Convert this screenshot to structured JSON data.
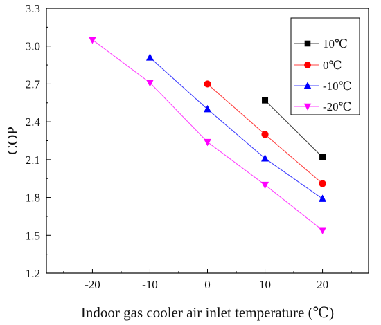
{
  "chart_data": {
    "type": "line",
    "xlabel": "Indoor gas cooler air inlet temperature (℃)",
    "ylabel": "COP",
    "xlim": [
      -28,
      28
    ],
    "ylim": [
      1.2,
      3.3
    ],
    "xticks": [
      "-20",
      "-10",
      "0",
      "10",
      "20"
    ],
    "yticks": [
      "1.2",
      "1.5",
      "1.8",
      "2.1",
      "2.4",
      "2.7",
      "3.0",
      "3.3"
    ],
    "grid": false,
    "legend_position": "top-right",
    "series": [
      {
        "name": "10℃",
        "color": "#000000",
        "marker": "square",
        "x": [
          10,
          20
        ],
        "y": [
          2.57,
          2.12
        ]
      },
      {
        "name": "0℃",
        "color": "#ff0000",
        "marker": "circle",
        "x": [
          0,
          10,
          20
        ],
        "y": [
          2.7,
          2.3,
          1.91
        ]
      },
      {
        "name": "-10℃",
        "color": "#0000ff",
        "marker": "triangle-up",
        "x": [
          -10,
          0,
          10,
          20
        ],
        "y": [
          2.91,
          2.5,
          2.11,
          1.79
        ]
      },
      {
        "name": "-20℃",
        "color": "#ff00ff",
        "marker": "triangle-down",
        "x": [
          -20,
          -10,
          0,
          10,
          20
        ],
        "y": [
          3.05,
          2.71,
          2.24,
          1.9,
          1.54
        ]
      }
    ]
  }
}
